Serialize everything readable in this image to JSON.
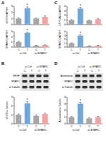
{
  "chart_data": [
    {
      "type": "bar",
      "panel": "A",
      "y_label": "VEGF/GAPDH",
      "categories": [
        null,
        null,
        null,
        null
      ],
      "values": [
        1,
        2.7,
        1,
        1.3
      ],
      "errors": [
        0.1,
        0.2,
        0.1,
        0.15
      ],
      "colors": [
        "#a6a6a6",
        "#6fa8dc",
        "#a6a6a6",
        "#f4a3a3"
      ],
      "ylim": [
        0,
        3
      ],
      "yticks": [
        0,
        1,
        2,
        3
      ],
      "annotations": [
        {
          "text": "*",
          "x": 1
        }
      ]
    },
    {
      "type": "bar",
      "y_label": "SPARC/GAPDH",
      "categories": [
        "C",
        "T",
        "C",
        "T"
      ],
      "group_labels": [
        "si-Ctrl",
        "si-SPARC"
      ],
      "values": [
        1,
        2.8,
        0.3,
        0.4
      ],
      "errors": [
        0.1,
        0.2,
        0.05,
        0.05
      ],
      "colors": [
        "#a6a6a6",
        "#6fa8dc",
        "#a6a6a6",
        "#f4a3a3"
      ],
      "ylim": [
        0,
        3
      ],
      "yticks": [
        0,
        1,
        2,
        3
      ],
      "annotations": [
        {
          "text": "*",
          "x": 1
        }
      ]
    },
    {
      "type": "bar",
      "y_label": "VEGF/α-Tubulin",
      "categories": [
        "C",
        "T",
        "C",
        "T"
      ],
      "group_labels": [
        "si-Ctrl",
        "si-SPARC"
      ],
      "values": [
        1,
        2.3,
        0.9,
        1.1
      ],
      "errors": [
        0.1,
        0.2,
        0.1,
        0.1
      ],
      "colors": [
        "#a6a6a6",
        "#6fa8dc",
        "#a6a6a6",
        "#f4a3a3"
      ],
      "ylim": [
        0,
        3
      ],
      "yticks": [
        0,
        1,
        2,
        3
      ],
      "annotations": [
        {
          "text": "*",
          "x": 1
        }
      ]
    },
    {
      "type": "bar",
      "panel": "C",
      "y_label": "CYP19A1/GAPDH",
      "categories": [
        null,
        null,
        null,
        null
      ],
      "values": [
        1,
        3.5,
        0.9,
        1.2
      ],
      "errors": [
        0.1,
        0.25,
        0.1,
        0.15
      ],
      "colors": [
        "#a6a6a6",
        "#6fa8dc",
        "#a6a6a6",
        "#f4a3a3"
      ],
      "ylim": [
        0,
        4
      ],
      "yticks": [
        0,
        1,
        2,
        3,
        4
      ],
      "annotations": [
        {
          "text": "*",
          "x": 1
        }
      ]
    },
    {
      "type": "bar",
      "y_label": "SPARC/GAPDH",
      "categories": [
        "C",
        "T",
        "C",
        "T"
      ],
      "group_labels": [
        "si-Ctrl",
        "si-SPARC"
      ],
      "values": [
        1,
        3,
        0.3,
        0.4
      ],
      "errors": [
        0.1,
        0.2,
        0.05,
        0.05
      ],
      "colors": [
        "#a6a6a6",
        "#6fa8dc",
        "#a6a6a6",
        "#f4a3a3"
      ],
      "ylim": [
        0,
        4
      ],
      "yticks": [
        0,
        1,
        2,
        3,
        4
      ],
      "annotations": [
        {
          "text": "*",
          "x": 1
        }
      ]
    },
    {
      "type": "bar",
      "y_label": "Aromatase/α-Tubulin",
      "categories": [
        "C",
        "T",
        "C",
        "T"
      ],
      "group_labels": [
        "si-Ctrl",
        "si-SPARC"
      ],
      "values": [
        1,
        3,
        0.8,
        1
      ],
      "errors": [
        0.1,
        0.2,
        0.1,
        0.1
      ],
      "colors": [
        "#a6a6a6",
        "#6fa8dc",
        "#a6a6a6",
        "#f4a3a3"
      ],
      "ylim": [
        0,
        4
      ],
      "yticks": [
        0,
        1,
        2,
        3,
        4
      ],
      "annotations": [
        {
          "text": "*",
          "x": 1
        }
      ]
    }
  ],
  "blots": [
    {
      "panel": "B",
      "groups": [
        "si-Ctrl",
        "si-SPARC"
      ],
      "lanes": [
        "C",
        "T",
        "C",
        "T"
      ],
      "bands": [
        "VEGF",
        "SPARC",
        "α-Tubulin"
      ]
    },
    {
      "panel": "D",
      "groups": [
        "si-Ctrl",
        "si-SPARC"
      ],
      "lanes": [
        "C",
        "T",
        "C",
        "T"
      ],
      "bands": [
        "Aromatase",
        "SPARC",
        "α-Tubulin"
      ]
    }
  ]
}
